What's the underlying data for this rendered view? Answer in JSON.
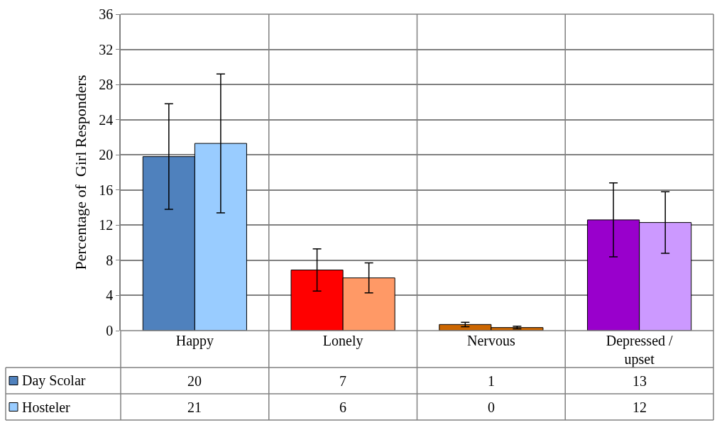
{
  "chart_data": {
    "type": "bar",
    "ylabel": "Percentage of  Girl Responders",
    "categories": [
      "Happy",
      "Lonely",
      "Nervous",
      "Depressed / upset"
    ],
    "series": [
      {
        "name": "Day Scolar",
        "colors": [
          "#4f81bd",
          "#ff0000",
          "#cc6600",
          "#9900cc"
        ],
        "values": [
          19.8,
          6.9,
          0.7,
          12.6
        ],
        "errors": [
          6,
          2.4,
          0.25,
          4.2
        ],
        "value_labels": [
          "20",
          "7",
          "1",
          "13"
        ]
      },
      {
        "name": "Hosteler",
        "colors": [
          "#99ccff",
          "#ff9966",
          "#cc6600",
          "#cc99ff"
        ],
        "values": [
          21.3,
          6.0,
          0.35,
          12.3
        ],
        "errors": [
          7.9,
          1.7,
          0.15,
          3.5
        ],
        "value_labels": [
          "21",
          "6",
          "0",
          "12"
        ]
      }
    ],
    "ylim": [
      0,
      36
    ],
    "yticks": [
      0,
      4,
      8,
      12,
      16,
      20,
      24,
      28,
      32,
      36
    ],
    "grid": true,
    "legend": "bottom left"
  }
}
